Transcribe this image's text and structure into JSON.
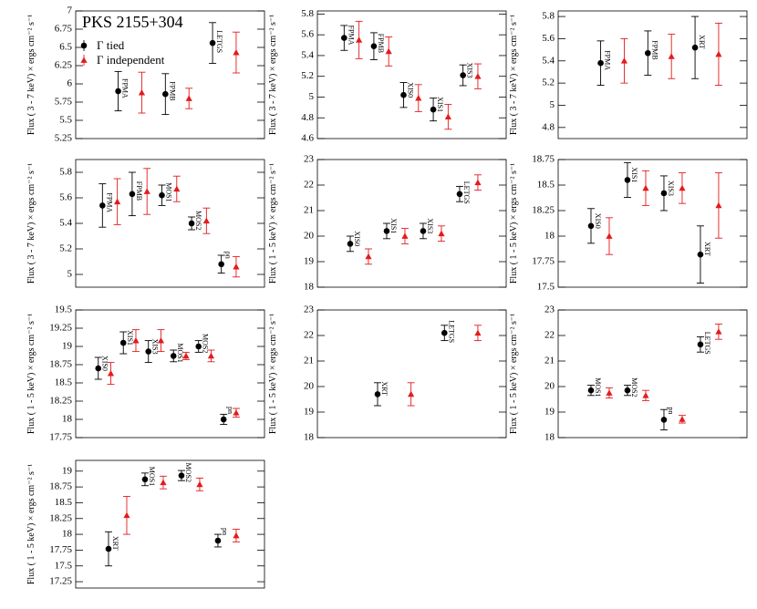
{
  "chart_data": [
    {
      "type": "errorbar",
      "title": "PKS 2155+304",
      "ylabel": "Flux ( 3 - 7 keV) × ergs cm⁻² s⁻¹",
      "categories": [
        "FPMA",
        "FPMB",
        "LETGS"
      ],
      "series": [
        {
          "name": "Γ tied",
          "color": "#000000",
          "marker": "circle",
          "values": [
            5.9,
            5.86,
            6.56
          ],
          "errors": [
            0.27,
            0.28,
            0.28
          ]
        },
        {
          "name": "Γ independent",
          "color": "#e41a1c",
          "marker": "triangle",
          "values": [
            5.88,
            5.8,
            6.43
          ],
          "errors": [
            0.28,
            0.14,
            0.28
          ]
        }
      ],
      "ylim": [
        5.25,
        7
      ],
      "yticks": [
        5.25,
        5.5,
        5.75,
        6,
        6.25,
        6.5,
        6.75,
        7
      ]
    },
    {
      "type": "errorbar",
      "ylabel": "Flux ( 3 - 7 keV) × ergs cm⁻² s⁻¹",
      "categories": [
        "FPMA",
        "FPMB",
        "XIS0",
        "XIS1",
        "XIS3"
      ],
      "series": [
        {
          "color": "#000000",
          "marker": "circle",
          "values": [
            5.57,
            5.49,
            5.02,
            4.88,
            5.21
          ],
          "errors": [
            0.12,
            0.13,
            0.12,
            0.11,
            0.1
          ]
        },
        {
          "color": "#e41a1c",
          "marker": "triangle",
          "values": [
            5.55,
            5.44,
            4.99,
            4.81,
            5.2
          ],
          "errors": [
            0.18,
            0.14,
            0.13,
            0.12,
            0.12
          ]
        }
      ],
      "ylim": [
        4.6,
        5.83
      ],
      "yticks": [
        4.6,
        4.8,
        5,
        5.2,
        5.4,
        5.6,
        5.8
      ]
    },
    {
      "type": "errorbar",
      "ylabel": "Flux ( 3 - 7 keV) × ergs cm⁻² s⁻¹",
      "categories": [
        "FPMA",
        "FPMB",
        "XRT"
      ],
      "series": [
        {
          "color": "#000000",
          "marker": "circle",
          "values": [
            5.38,
            5.47,
            5.52
          ],
          "errors": [
            0.2,
            0.2,
            0.28
          ]
        },
        {
          "color": "#e41a1c",
          "marker": "triangle",
          "values": [
            5.4,
            5.44,
            5.46
          ],
          "errors": [
            0.2,
            0.2,
            0.28
          ]
        }
      ],
      "ylim": [
        4.7,
        5.85
      ],
      "yticks": [
        4.8,
        5,
        5.2,
        5.4,
        5.6,
        5.8
      ]
    },
    {
      "type": "errorbar",
      "ylabel": "Flux ( 3 - 7 keV) × ergs cm⁻² s⁻¹",
      "categories": [
        "FPMA",
        "FPMB",
        "MOS1",
        "MOS2",
        "pn"
      ],
      "series": [
        {
          "color": "#000000",
          "marker": "circle",
          "values": [
            5.54,
            5.63,
            5.62,
            5.4,
            5.08
          ],
          "errors": [
            0.17,
            0.17,
            0.08,
            0.05,
            0.07
          ]
        },
        {
          "color": "#e41a1c",
          "marker": "triangle",
          "values": [
            5.57,
            5.65,
            5.67,
            5.42,
            5.06
          ],
          "errors": [
            0.18,
            0.18,
            0.1,
            0.1,
            0.08
          ]
        }
      ],
      "ylim": [
        4.9,
        5.9
      ],
      "yticks": [
        5,
        5.2,
        5.4,
        5.6,
        5.8
      ]
    },
    {
      "type": "errorbar",
      "ylabel": "Flux ( 1 - 5 keV) × ergs cm⁻² s⁻¹",
      "categories": [
        "XIS0",
        "XIS1",
        "XIS3",
        "LETGS"
      ],
      "series": [
        {
          "color": "#000000",
          "marker": "circle",
          "values": [
            19.7,
            20.2,
            20.2,
            21.65
          ],
          "errors": [
            0.3,
            0.3,
            0.3,
            0.3
          ]
        },
        {
          "color": "#e41a1c",
          "marker": "triangle",
          "values": [
            19.2,
            20.0,
            20.1,
            22.1
          ],
          "errors": [
            0.3,
            0.3,
            0.3,
            0.3
          ]
        }
      ],
      "ylim": [
        18,
        23
      ],
      "yticks": [
        18,
        19,
        20,
        21,
        22,
        23
      ]
    },
    {
      "type": "errorbar",
      "ylabel": "Flux ( 1 - 5 keV) × ergs cm⁻² s⁻¹",
      "categories": [
        "XIS0",
        "XIS1",
        "XIS3",
        "XRT"
      ],
      "series": [
        {
          "color": "#000000",
          "marker": "circle",
          "values": [
            18.1,
            18.55,
            18.42,
            17.82
          ],
          "errors": [
            0.17,
            0.17,
            0.17,
            0.28
          ]
        },
        {
          "color": "#e41a1c",
          "marker": "triangle",
          "values": [
            18.0,
            18.47,
            18.47,
            18.3
          ],
          "errors": [
            0.18,
            0.17,
            0.15,
            0.32
          ]
        }
      ],
      "ylim": [
        17.5,
        18.75
      ],
      "yticks": [
        17.5,
        17.75,
        18,
        18.25,
        18.5,
        18.75
      ]
    },
    {
      "type": "errorbar",
      "ylabel": "Flux ( 1 - 5 keV) × ergs cm⁻² s⁻¹",
      "categories": [
        "XIS0",
        "XIS1",
        "XIS3",
        "MOS1",
        "MOS2",
        "pn"
      ],
      "series": [
        {
          "color": "#000000",
          "marker": "circle",
          "values": [
            18.7,
            19.05,
            18.93,
            18.87,
            19.0,
            18.0
          ],
          "errors": [
            0.15,
            0.15,
            0.15,
            0.08,
            0.08,
            0.07
          ]
        },
        {
          "color": "#e41a1c",
          "marker": "triangle",
          "values": [
            18.63,
            19.08,
            19.08,
            18.87,
            18.87,
            18.09
          ],
          "errors": [
            0.15,
            0.15,
            0.15,
            0.05,
            0.08,
            0.06
          ]
        }
      ],
      "ylim": [
        17.75,
        19.5
      ],
      "yticks": [
        17.75,
        18,
        18.25,
        18.5,
        18.75,
        19,
        19.25,
        19.5
      ]
    },
    {
      "type": "errorbar",
      "ylabel": "Flux ( 1 - 5 keV) × ergs cm⁻² s⁻¹",
      "categories": [
        "XRT",
        "LETGS"
      ],
      "series": [
        {
          "color": "#000000",
          "marker": "circle",
          "values": [
            19.7,
            22.1
          ],
          "errors": [
            0.45,
            0.3
          ]
        },
        {
          "color": "#e41a1c",
          "marker": "triangle",
          "values": [
            19.7,
            22.1
          ],
          "errors": [
            0.45,
            0.3
          ]
        }
      ],
      "ylim": [
        18,
        23
      ],
      "yticks": [
        18,
        19,
        20,
        21,
        22,
        23
      ]
    },
    {
      "type": "errorbar",
      "ylabel": "Flux ( 1 - 5 keV) × ergs cm⁻² s⁻¹",
      "categories": [
        "MOS1",
        "MOS2",
        "pn",
        "LETGS"
      ],
      "series": [
        {
          "color": "#000000",
          "marker": "circle",
          "values": [
            19.85,
            19.85,
            18.7,
            21.65
          ],
          "errors": [
            0.2,
            0.2,
            0.4,
            0.3
          ]
        },
        {
          "color": "#e41a1c",
          "marker": "triangle",
          "values": [
            19.75,
            19.65,
            18.72,
            22.15
          ],
          "errors": [
            0.2,
            0.2,
            0.15,
            0.3
          ]
        }
      ],
      "ylim": [
        18,
        23
      ],
      "yticks": [
        18,
        19,
        20,
        21,
        22,
        23
      ]
    },
    {
      "type": "errorbar",
      "ylabel": "Flux ( 1 - 5 keV) × ergs cm⁻² s⁻¹",
      "categories": [
        "XRT",
        "MOS1",
        "MOS2",
        "pn"
      ],
      "series": [
        {
          "color": "#000000",
          "marker": "circle",
          "values": [
            17.77,
            18.87,
            18.93,
            17.9
          ],
          "errors": [
            0.27,
            0.1,
            0.08,
            0.1
          ]
        },
        {
          "color": "#e41a1c",
          "marker": "triangle",
          "values": [
            18.3,
            18.82,
            18.79,
            17.98
          ],
          "errors": [
            0.3,
            0.1,
            0.1,
            0.1
          ]
        }
      ],
      "ylim": [
        17.15,
        19.17
      ],
      "yticks": [
        17.25,
        17.5,
        17.75,
        18,
        18.25,
        18.5,
        18.75,
        19
      ]
    }
  ]
}
